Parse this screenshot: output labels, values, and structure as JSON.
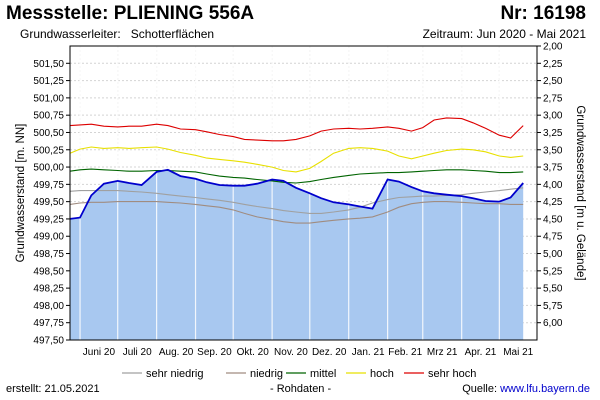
{
  "header": {
    "title": "Messstelle: PLIENING 556A",
    "number": "Nr: 16198",
    "aquifer_label": "Grundwasserleiter:",
    "aquifer_value": "Schotterflächen",
    "period": "Zeitraum: Jun 2020 - Mai 2021"
  },
  "footer": {
    "created": "erstellt:  21.05.2021",
    "raw": "- Rohdaten -",
    "source_label": "Quelle: ",
    "source_link": "www.lfu.bayern.de"
  },
  "colors": {
    "fill": "#a8c8f0",
    "measured": "#0000cc",
    "sehr_niedrig": "#a0a0a0",
    "niedrig": "#a08c80",
    "mittel": "#006400",
    "hoch": "#e8e000",
    "sehr_hoch": "#dd0000",
    "grid": "#d4d4d4"
  },
  "chart_data": {
    "type": "area",
    "ylabel": "Grundwasserstand [m. NN]",
    "y2label": "Grundwasserstand [m u. Gelände]",
    "ylim": [
      497.5,
      501.75
    ],
    "y_ticks": [
      "497,50",
      "497,75",
      "498,00",
      "498,25",
      "498,50",
      "498,75",
      "499,00",
      "499,25",
      "499,50",
      "499,75",
      "500,00",
      "500,25",
      "500,50",
      "500,75",
      "501,00",
      "501,25",
      "501,50"
    ],
    "y2_ticks": [
      "2,00",
      "2,25",
      "2,50",
      "2,75",
      "3,00",
      "3,25",
      "3,50",
      "3,75",
      "4,00",
      "4,25",
      "4,50",
      "4,75",
      "5,00",
      "5,25",
      "5,50",
      "5,75",
      "6,00"
    ],
    "x_ticks": [
      "Juni 20",
      "Juli 20",
      "Aug. 20",
      "Sep. 20",
      "Okt. 20",
      "Nov. 20",
      "Dez. 20",
      "Jan. 21",
      "Feb. 21",
      "Mrz 21",
      "Apr. 21",
      "Mai 21"
    ],
    "grid": true,
    "legend": [
      {
        "key": "sehr_niedrig",
        "label": "sehr niedrig"
      },
      {
        "key": "niedrig",
        "label": "niedrig"
      },
      {
        "key": "mittel",
        "label": "mittel"
      },
      {
        "key": "hoch",
        "label": "hoch"
      },
      {
        "key": "sehr_hoch",
        "label": "sehr hoch"
      }
    ],
    "x": [
      "2020-05-24",
      "2020-06-01",
      "2020-06-10",
      "2020-06-20",
      "2020-07-01",
      "2020-07-10",
      "2020-07-20",
      "2020-08-01",
      "2020-08-10",
      "2020-08-20",
      "2020-09-01",
      "2020-09-10",
      "2020-09-20",
      "2020-10-01",
      "2020-10-10",
      "2020-10-20",
      "2020-11-01",
      "2020-11-10",
      "2020-11-20",
      "2020-12-01",
      "2020-12-10",
      "2020-12-20",
      "2021-01-01",
      "2021-01-10",
      "2021-01-20",
      "2021-02-01",
      "2021-02-10",
      "2021-02-20",
      "2021-03-01",
      "2021-03-10",
      "2021-03-20",
      "2021-04-01",
      "2021-04-10",
      "2021-04-20",
      "2021-05-01",
      "2021-05-10",
      "2021-05-20"
    ],
    "series": [
      {
        "key": "sehr_niedrig",
        "name": "sehr niedrig",
        "values": [
          499.65,
          499.66,
          499.66,
          499.66,
          499.66,
          499.65,
          499.64,
          499.62,
          499.6,
          499.58,
          499.56,
          499.54,
          499.52,
          499.49,
          499.46,
          499.43,
          499.4,
          499.37,
          499.35,
          499.33,
          499.33,
          499.35,
          499.38,
          499.42,
          499.48,
          499.53,
          499.56,
          499.57,
          499.58,
          499.58,
          499.59,
          499.6,
          499.62,
          499.64,
          499.66,
          499.68,
          499.7
        ]
      },
      {
        "key": "niedrig",
        "name": "niedrig",
        "values": [
          499.46,
          499.48,
          499.49,
          499.49,
          499.5,
          499.5,
          499.5,
          499.5,
          499.49,
          499.48,
          499.46,
          499.44,
          499.42,
          499.38,
          499.33,
          499.28,
          499.24,
          499.21,
          499.19,
          499.19,
          499.21,
          499.23,
          499.25,
          499.26,
          499.28,
          499.35,
          499.42,
          499.47,
          499.49,
          499.5,
          499.5,
          499.49,
          499.48,
          499.47,
          499.47,
          499.46,
          499.46
        ]
      },
      {
        "key": "mittel",
        "name": "mittel",
        "values": [
          499.94,
          499.96,
          499.97,
          499.96,
          499.95,
          499.94,
          499.94,
          499.95,
          499.95,
          499.94,
          499.93,
          499.9,
          499.87,
          499.85,
          499.84,
          499.82,
          499.8,
          499.78,
          499.77,
          499.79,
          499.82,
          499.85,
          499.88,
          499.9,
          499.91,
          499.92,
          499.92,
          499.93,
          499.94,
          499.95,
          499.96,
          499.96,
          499.95,
          499.94,
          499.92,
          499.92,
          499.93
        ]
      },
      {
        "key": "hoch",
        "name": "hoch",
        "values": [
          500.2,
          500.26,
          500.29,
          500.27,
          500.28,
          500.27,
          500.28,
          500.29,
          500.26,
          500.21,
          500.17,
          500.13,
          500.11,
          500.09,
          500.07,
          500.04,
          500.0,
          499.95,
          499.93,
          499.98,
          500.08,
          500.2,
          500.27,
          500.28,
          500.27,
          500.23,
          500.16,
          500.12,
          500.16,
          500.2,
          500.24,
          500.26,
          500.25,
          500.22,
          500.16,
          500.14,
          500.16
        ]
      },
      {
        "key": "sehr_hoch",
        "name": "sehr hoch",
        "values": [
          500.6,
          500.61,
          500.62,
          500.59,
          500.58,
          500.59,
          500.59,
          500.62,
          500.6,
          500.55,
          500.54,
          500.51,
          500.47,
          500.44,
          500.4,
          500.39,
          500.38,
          500.38,
          500.4,
          500.45,
          500.52,
          500.55,
          500.56,
          500.55,
          500.56,
          500.58,
          500.56,
          500.52,
          500.57,
          500.68,
          500.71,
          500.7,
          500.64,
          500.56,
          500.46,
          500.42,
          500.6
        ]
      },
      {
        "key": "measured",
        "name": "Grundwasserstand",
        "values": [
          499.25,
          499.27,
          499.59,
          499.76,
          499.8,
          499.77,
          499.74,
          499.93,
          499.96,
          499.87,
          499.83,
          499.78,
          499.74,
          499.73,
          499.73,
          499.76,
          499.82,
          499.8,
          499.7,
          499.62,
          499.55,
          499.49,
          499.46,
          499.43,
          499.4,
          499.82,
          499.79,
          499.71,
          499.65,
          499.62,
          499.6,
          499.58,
          499.55,
          499.51,
          499.5,
          499.56,
          499.77
        ]
      }
    ]
  }
}
